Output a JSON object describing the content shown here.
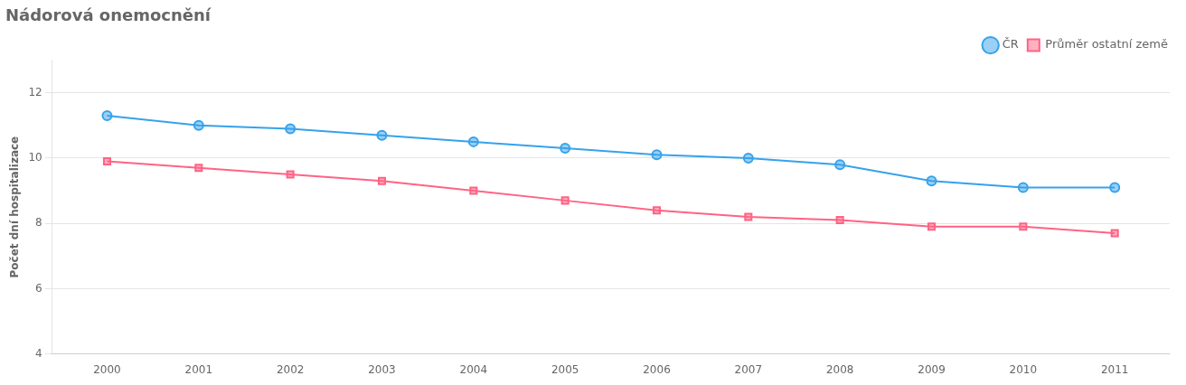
{
  "chart_data": {
    "type": "line",
    "title": "Nádorová onemocnění",
    "ylabel": "Počet dní hospitalizace",
    "x": [
      2000,
      2001,
      2002,
      2003,
      2004,
      2005,
      2006,
      2007,
      2008,
      2009,
      2010,
      2011
    ],
    "series": [
      {
        "name": "ČR",
        "values": [
          11.3,
          11.0,
          10.9,
          10.7,
          10.5,
          10.3,
          10.1,
          10.0,
          9.8,
          9.3,
          9.1,
          9.1
        ],
        "marker": "circle"
      },
      {
        "name": "Průměr ostatní země",
        "values": [
          9.9,
          9.7,
          9.5,
          9.3,
          9.0,
          8.7,
          8.4,
          8.2,
          8.1,
          7.9,
          7.9,
          7.7
        ],
        "marker": "square"
      }
    ],
    "xlim": [
      1999.4,
      2011.6
    ],
    "xticks": [
      2000,
      2001,
      2002,
      2003,
      2004,
      2005,
      2006,
      2007,
      2008,
      2009,
      2010,
      2011
    ],
    "ylim": [
      4,
      13
    ],
    "yticks": [
      4,
      6,
      8,
      10,
      12
    ],
    "grid": "y",
    "legend": "upper right"
  }
}
